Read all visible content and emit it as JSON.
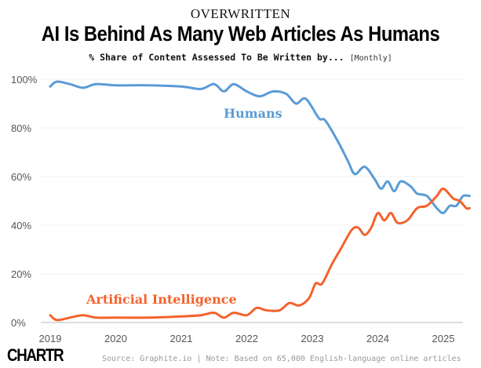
{
  "header": {
    "kicker": "OVERWRITTEN",
    "title": "AI Is Behind As Many Web Articles As Humans",
    "subtitle": "% Share of Content Assessed To Be Written by...",
    "subtitle_note": "[Monthly]"
  },
  "footer": {
    "logo": "CHARTR",
    "source": "Source: Graphite.io | Note: Based on 65,000 English-language online articles"
  },
  "chart_data": {
    "type": "line",
    "title": "AI Is Behind As Many Web Articles As Humans",
    "xlabel": "",
    "ylabel": "% Share of Content",
    "xlim": [
      2019,
      2025.5
    ],
    "ylim": [
      0,
      100
    ],
    "x_ticks": [
      2019,
      2020,
      2021,
      2022,
      2023,
      2024,
      2025
    ],
    "x_tick_labels": [
      "2019",
      "2020",
      "2021",
      "2022",
      "2023",
      "2024",
      "2025"
    ],
    "y_ticks": [
      0,
      20,
      40,
      60,
      80,
      100
    ],
    "y_tick_labels": [
      "0%",
      "20%",
      "40%",
      "60%",
      "80%",
      "100%"
    ],
    "grid": true,
    "series": [
      {
        "name": "Humans",
        "color": "#5b9bd5",
        "x": [
          2019.0,
          2019.1,
          2019.3,
          2019.5,
          2019.7,
          2020.0,
          2020.5,
          2021.0,
          2021.3,
          2021.5,
          2021.65,
          2021.8,
          2022.0,
          2022.2,
          2022.4,
          2022.6,
          2022.75,
          2022.9,
          2023.1,
          2023.2,
          2023.4,
          2023.55,
          2023.65,
          2023.8,
          2023.95,
          2024.05,
          2024.15,
          2024.25,
          2024.35,
          2024.5,
          2024.6,
          2024.75,
          2024.9,
          2025.0,
          2025.1,
          2025.2,
          2025.3,
          2025.4
        ],
        "y": [
          97,
          99,
          98,
          96.5,
          98,
          97.5,
          97.5,
          97,
          96,
          98,
          95,
          98,
          95,
          93,
          95,
          94,
          90,
          92,
          84,
          83,
          74,
          66,
          61,
          64,
          59,
          55,
          58,
          54,
          58,
          56,
          53,
          52,
          47,
          45,
          48,
          48,
          52,
          52
        ]
      },
      {
        "name": "Artificial Intelligence",
        "color": "#f4622c",
        "x": [
          2019.0,
          2019.1,
          2019.3,
          2019.5,
          2019.7,
          2020.0,
          2020.5,
          2021.0,
          2021.3,
          2021.5,
          2021.65,
          2021.8,
          2022.0,
          2022.15,
          2022.3,
          2022.5,
          2022.65,
          2022.8,
          2022.95,
          2023.05,
          2023.15,
          2023.3,
          2023.45,
          2023.6,
          2023.7,
          2023.8,
          2023.9,
          2024.0,
          2024.1,
          2024.2,
          2024.3,
          2024.45,
          2024.6,
          2024.75,
          2024.9,
          2025.0,
          2025.15,
          2025.25,
          2025.35,
          2025.4
        ],
        "y": [
          3,
          1,
          2,
          3,
          2,
          2,
          2,
          2.5,
          3,
          4,
          2,
          4,
          3,
          6,
          5,
          5,
          8,
          7,
          10,
          16,
          16,
          24,
          31,
          38,
          39,
          36,
          39,
          45,
          42,
          45,
          41,
          42,
          47,
          48,
          52,
          55,
          51,
          50,
          47,
          47
        ]
      }
    ]
  }
}
